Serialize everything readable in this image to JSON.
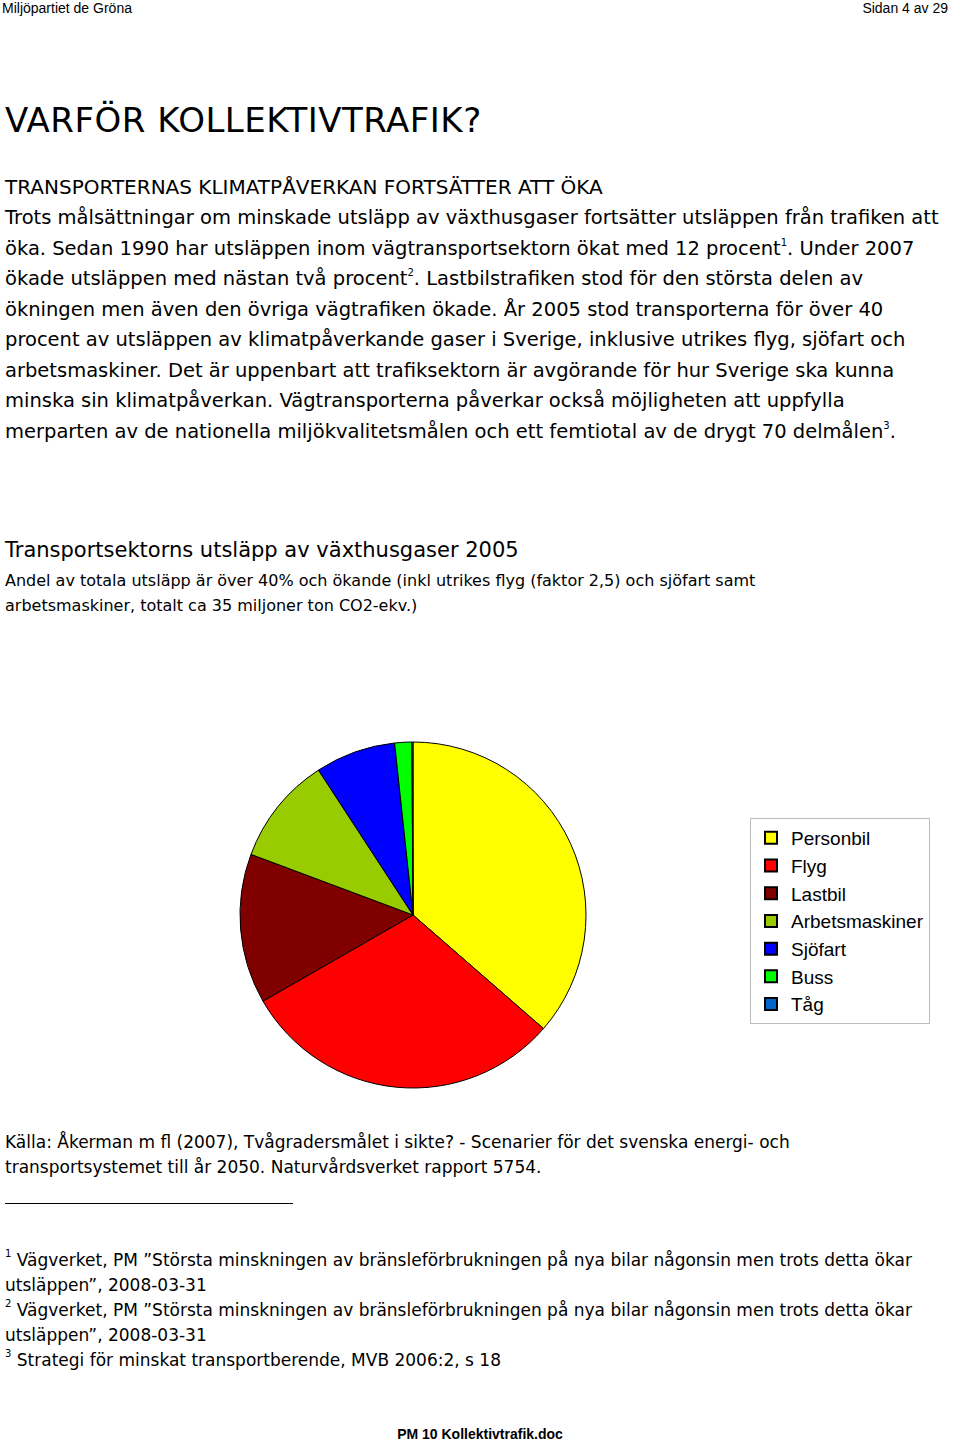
{
  "header": {
    "left": "Miljöpartiet de Gröna",
    "right": "Sidan 4 av 29"
  },
  "title": "VARFÖR KOLLEKTIVTRAFIK?",
  "section": {
    "heading": "TRANSPORTERNAS KLIMATPÅVERKAN FORTSÄTTER ATT ÖKA",
    "paragraph": [
      {
        "text": "Trots målsättningar om minskade utsläpp av växthusgaser fortsätter utsläppen från trafiken att öka. Sedan 1990 har utsläppen inom vägtransportsektorn ökat med 12 procent"
      },
      {
        "sup": "1"
      },
      {
        "text": ". Under 2007 ökade utsläppen med nästan två procent"
      },
      {
        "sup": "2"
      },
      {
        "text": ". Lastbilstrafiken stod för den största delen av ökningen men även den övriga vägtrafiken ökade. År 2005 stod transporterna för över 40 procent av utsläppen av klimatpåverkande gaser i Sverige, inklusive utrikes flyg, sjöfart och arbetsmaskiner. Det är uppenbart att trafiksektorn är avgörande för hur Sverige ska kunna minska sin klimatpåverkan. Vägtransporterna påverkar också möjligheten att uppfylla merparten av de nationella miljökvalitetsmålen och ett femtiotal av de drygt 70 delmålen"
      },
      {
        "sup": "3"
      },
      {
        "text": "."
      }
    ]
  },
  "chart_data": {
    "type": "pie",
    "title": "Transportsektorns utsläpp av växthusgaser 2005",
    "subtitle": "Andel av totala utsläpp är över 40% och ökande (inkl utrikes flyg (faktor 2,5) och sjöfart samt arbetsmaskiner, totalt ca 35 miljoner ton CO2-ekv.)",
    "categories": [
      "Personbil",
      "Flyg",
      "Lastbil",
      "Arbetsmaskiner",
      "Sjöfart",
      "Buss",
      "Tåg"
    ],
    "values": [
      36.4,
      30.3,
      14.0,
      10.1,
      7.5,
      1.6,
      0.1
    ],
    "colors": [
      "#ffff00",
      "#ff0000",
      "#800000",
      "#99cc00",
      "#0000ff",
      "#00ff00",
      "#0066cc"
    ],
    "legend": "right",
    "data_labels": false
  },
  "source": {
    "label": "Källa:",
    "text": " Åkerman m fl (2007), Tvågradersmålet i sikte? - Scenarier för det svenska energi- och transportsystemet till år 2050. Naturvårdsverket rapport 5754."
  },
  "footnotes": [
    {
      "mark": "1",
      "text": " Vägverket, PM ”Största minskningen av bränsleförbrukningen på nya bilar någonsin men trots detta ökar utsläppen”, 2008-03-31"
    },
    {
      "mark": "2",
      "text": " Vägverket, PM ”Största minskningen av bränsleförbrukningen på nya bilar någonsin men trots detta ökar utsläppen”, 2008-03-31"
    },
    {
      "mark": "3",
      "text": " Strategi för minskat transportberende, MVB 2006:2, s 18"
    }
  ],
  "footer": "PM 10 Kollektivtrafik.doc"
}
